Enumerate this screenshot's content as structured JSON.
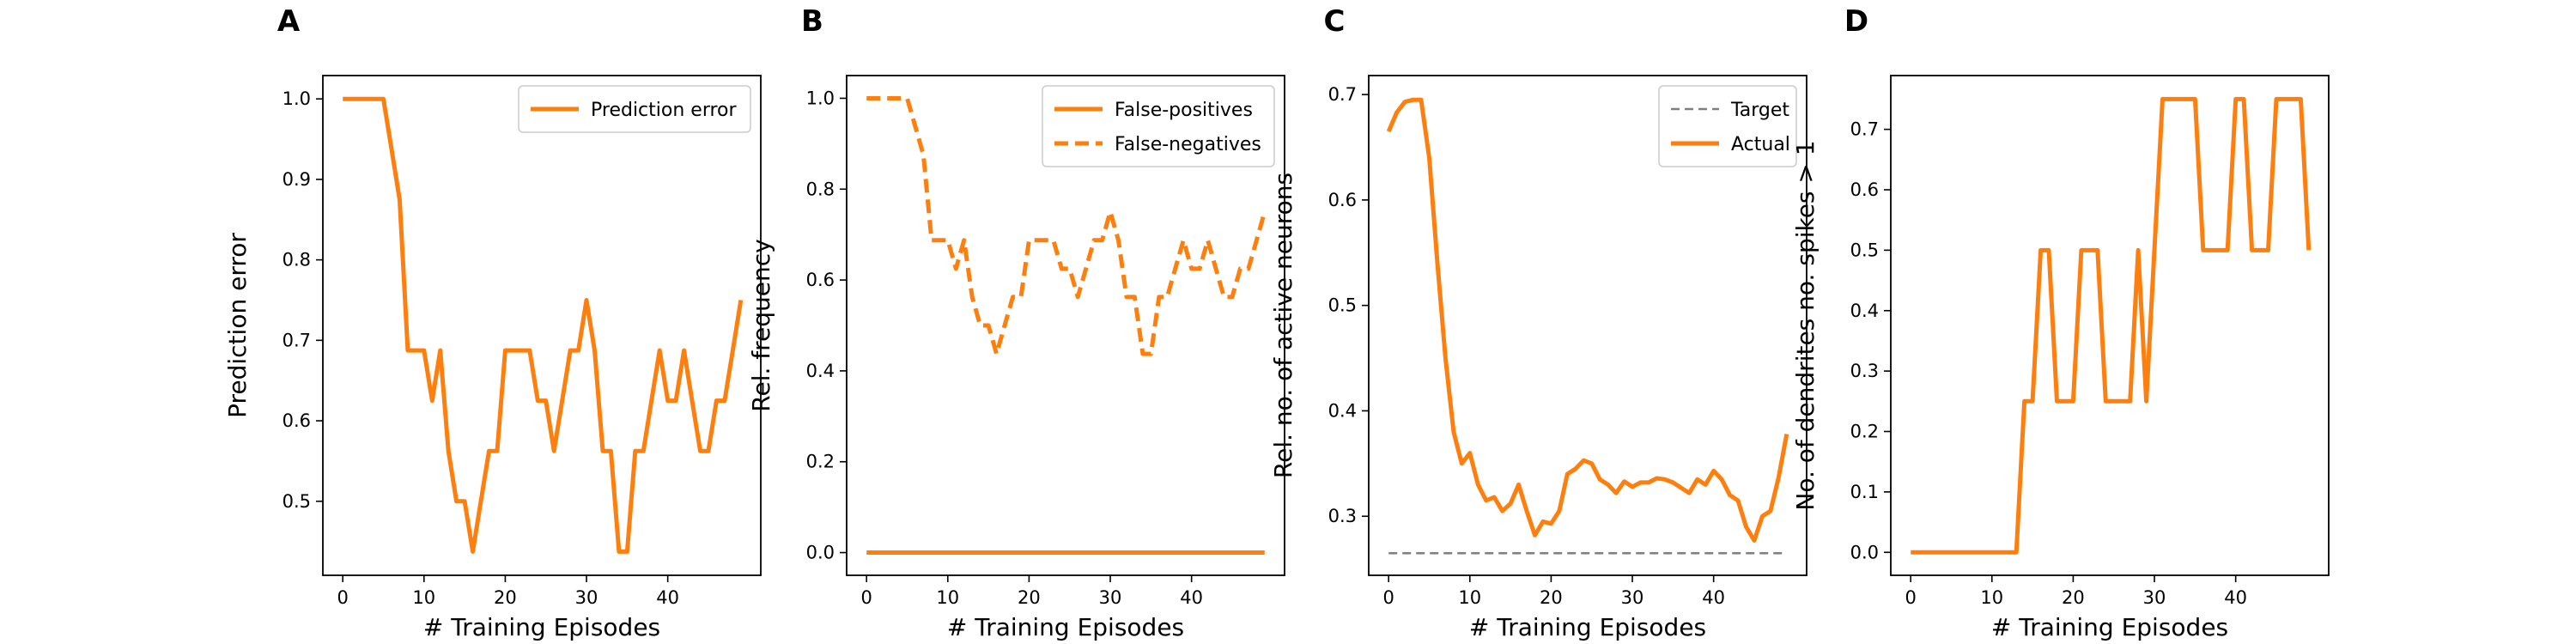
{
  "chart_data": [
    {
      "panel_label": "A",
      "type": "line",
      "xlabel": "# Training Episodes",
      "ylabel": "Prediction error",
      "xlim": [
        -2.45,
        51.45
      ],
      "ylim": [
        0.408,
        1.029
      ],
      "xticks": [
        0,
        10,
        20,
        30,
        40
      ],
      "xtick_labels": [
        "0",
        "10",
        "20",
        "30",
        "40"
      ],
      "yticks": [
        0.5,
        0.6,
        0.7,
        0.8,
        0.9,
        1.0
      ],
      "ytick_labels": [
        "0.5",
        "0.6",
        "0.7",
        "0.8",
        "0.9",
        "1.0"
      ],
      "legend_position": "upper right",
      "series": [
        {
          "name": "Prediction error",
          "color": "#ff7f0e",
          "style": "solid",
          "x": [
            0,
            1,
            2,
            3,
            4,
            5,
            6,
            7,
            8,
            9,
            10,
            11,
            12,
            13,
            14,
            15,
            16,
            17,
            18,
            19,
            20,
            21,
            22,
            23,
            24,
            25,
            26,
            27,
            28,
            29,
            30,
            31,
            32,
            33,
            34,
            35,
            36,
            37,
            38,
            39,
            40,
            41,
            42,
            43,
            44,
            45,
            46,
            47,
            48,
            49
          ],
          "y": [
            1.0,
            1.0,
            1.0,
            1.0,
            1.0,
            1.0,
            0.9375,
            0.875,
            0.6875,
            0.6875,
            0.6875,
            0.625,
            0.6875,
            0.5625,
            0.5,
            0.5,
            0.4375,
            0.5,
            0.5625,
            0.5625,
            0.6875,
            0.6875,
            0.6875,
            0.6875,
            0.625,
            0.625,
            0.5625,
            0.625,
            0.6875,
            0.6875,
            0.75,
            0.6875,
            0.5625,
            0.5625,
            0.4375,
            0.4375,
            0.5625,
            0.5625,
            0.625,
            0.6875,
            0.625,
            0.625,
            0.6875,
            0.625,
            0.5625,
            0.5625,
            0.625,
            0.625,
            0.6875,
            0.75
          ]
        }
      ]
    },
    {
      "panel_label": "B",
      "type": "line",
      "xlabel": "# Training Episodes",
      "ylabel": "Rel. frequency",
      "xlim": [
        -2.45,
        51.45
      ],
      "ylim": [
        -0.05,
        1.05
      ],
      "xticks": [
        0,
        10,
        20,
        30,
        40
      ],
      "xtick_labels": [
        "0",
        "10",
        "20",
        "30",
        "40"
      ],
      "yticks": [
        0.0,
        0.2,
        0.4,
        0.6,
        0.8,
        1.0
      ],
      "ytick_labels": [
        "0.0",
        "0.2",
        "0.4",
        "0.6",
        "0.8",
        "1.0"
      ],
      "legend_position": "upper right",
      "series": [
        {
          "name": "False-positives",
          "color": "#ff7f0e",
          "style": "solid",
          "x": [
            0,
            49
          ],
          "y": [
            0.0,
            0.0
          ]
        },
        {
          "name": "False-negatives",
          "color": "#ff7f0e",
          "style": "dashed",
          "x": [
            0,
            1,
            2,
            3,
            4,
            5,
            6,
            7,
            8,
            9,
            10,
            11,
            12,
            13,
            14,
            15,
            16,
            17,
            18,
            19,
            20,
            21,
            22,
            23,
            24,
            25,
            26,
            27,
            28,
            29,
            30,
            31,
            32,
            33,
            34,
            35,
            36,
            37,
            38,
            39,
            40,
            41,
            42,
            43,
            44,
            45,
            46,
            47,
            48,
            49
          ],
          "y": [
            1.0,
            1.0,
            1.0,
            1.0,
            1.0,
            1.0,
            0.9375,
            0.875,
            0.6875,
            0.6875,
            0.6875,
            0.625,
            0.6875,
            0.5625,
            0.5,
            0.5,
            0.4375,
            0.5,
            0.5625,
            0.5625,
            0.6875,
            0.6875,
            0.6875,
            0.6875,
            0.625,
            0.625,
            0.5625,
            0.625,
            0.6875,
            0.6875,
            0.75,
            0.6875,
            0.5625,
            0.5625,
            0.4375,
            0.4375,
            0.5625,
            0.5625,
            0.625,
            0.6875,
            0.625,
            0.625,
            0.6875,
            0.625,
            0.5625,
            0.5625,
            0.625,
            0.625,
            0.6875,
            0.75
          ]
        }
      ]
    },
    {
      "panel_label": "C",
      "type": "line",
      "xlabel": "# Training Episodes",
      "ylabel": "Rel. no. of active neurons",
      "xlim": [
        -2.45,
        51.45
      ],
      "ylim": [
        0.244,
        0.718
      ],
      "xticks": [
        0,
        10,
        20,
        30,
        40
      ],
      "xtick_labels": [
        "0",
        "10",
        "20",
        "30",
        "40"
      ],
      "yticks": [
        0.3,
        0.4,
        0.5,
        0.6,
        0.7
      ],
      "ytick_labels": [
        "0.3",
        "0.4",
        "0.5",
        "0.6",
        "0.7"
      ],
      "legend_position": "upper right",
      "series": [
        {
          "name": "Target",
          "color": "#808080",
          "style": "dashed",
          "x": [
            0,
            49
          ],
          "y": [
            0.265,
            0.265
          ]
        },
        {
          "name": "Actual",
          "color": "#ff7f0e",
          "style": "solid",
          "x": [
            0,
            1,
            2,
            3,
            4,
            5,
            6,
            7,
            8,
            9,
            10,
            11,
            12,
            13,
            14,
            15,
            16,
            17,
            18,
            19,
            20,
            21,
            22,
            23,
            24,
            25,
            26,
            27,
            28,
            29,
            30,
            31,
            32,
            33,
            34,
            35,
            36,
            37,
            38,
            39,
            40,
            41,
            42,
            43,
            44,
            45,
            46,
            47,
            48,
            49
          ],
          "y": [
            0.665,
            0.683,
            0.693,
            0.695,
            0.695,
            0.64,
            0.54,
            0.45,
            0.38,
            0.35,
            0.36,
            0.33,
            0.315,
            0.318,
            0.305,
            0.312,
            0.33,
            0.305,
            0.282,
            0.295,
            0.293,
            0.305,
            0.34,
            0.345,
            0.353,
            0.35,
            0.335,
            0.33,
            0.322,
            0.333,
            0.328,
            0.332,
            0.332,
            0.336,
            0.335,
            0.332,
            0.327,
            0.322,
            0.335,
            0.33,
            0.343,
            0.335,
            0.32,
            0.315,
            0.29,
            0.277,
            0.3,
            0.305,
            0.337,
            0.378
          ]
        }
      ]
    },
    {
      "panel_label": "D",
      "type": "line",
      "xlabel": "# Training Episodes",
      "ylabel": "No. of dendrites no. spikes > 1",
      "xlim": [
        -2.45,
        51.45
      ],
      "ylim": [
        -0.038,
        0.789
      ],
      "xticks": [
        0,
        10,
        20,
        30,
        40
      ],
      "xtick_labels": [
        "0",
        "10",
        "20",
        "30",
        "40"
      ],
      "yticks": [
        0.0,
        0.1,
        0.2,
        0.3,
        0.4,
        0.5,
        0.6,
        0.7
      ],
      "ytick_labels": [
        "0.0",
        "0.1",
        "0.2",
        "0.3",
        "0.4",
        "0.5",
        "0.6",
        "0.7"
      ],
      "series": [
        {
          "color": "#ff7f0e",
          "style": "solid",
          "x": [
            0,
            1,
            2,
            3,
            4,
            5,
            6,
            7,
            8,
            9,
            10,
            11,
            12,
            13,
            14,
            15,
            16,
            17,
            18,
            19,
            20,
            21,
            22,
            23,
            24,
            25,
            26,
            27,
            28,
            29,
            30,
            31,
            32,
            33,
            34,
            35,
            36,
            37,
            38,
            39,
            40,
            41,
            42,
            43,
            44,
            45,
            46,
            47,
            48,
            49
          ],
          "y": [
            0,
            0,
            0,
            0,
            0,
            0,
            0,
            0,
            0,
            0,
            0,
            0,
            0,
            0,
            0.25,
            0.25,
            0.5,
            0.5,
            0.25,
            0.25,
            0.25,
            0.5,
            0.5,
            0.5,
            0.25,
            0.25,
            0.25,
            0.25,
            0.5,
            0.25,
            0.5,
            0.75,
            0.75,
            0.75,
            0.75,
            0.75,
            0.5,
            0.5,
            0.5,
            0.5,
            0.75,
            0.75,
            0.5,
            0.5,
            0.5,
            0.75,
            0.75,
            0.75,
            0.75,
            0.5
          ]
        }
      ]
    }
  ]
}
